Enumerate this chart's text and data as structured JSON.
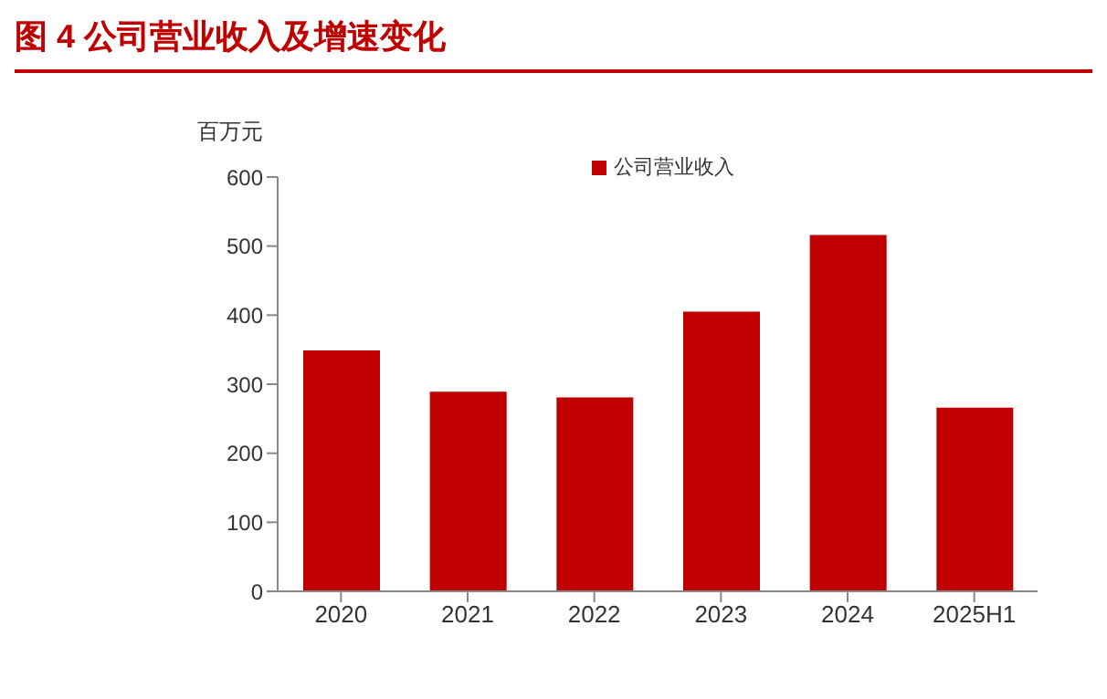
{
  "chart_data": {
    "type": "bar",
    "title": "图 4 公司营业收入及增速变化",
    "ylabel": "百万元",
    "categories": [
      "2020",
      "2021",
      "2022",
      "2023",
      "2024",
      "2025H1"
    ],
    "series": [
      {
        "name": "公司营业收入",
        "color": "#c00000",
        "values": [
          349,
          289,
          281,
          405,
          516,
          266
        ]
      }
    ],
    "ylim": [
      0,
      600
    ],
    "yticks": [
      0,
      100,
      200,
      300,
      400,
      500,
      600
    ],
    "grid": false,
    "legend": "top"
  }
}
